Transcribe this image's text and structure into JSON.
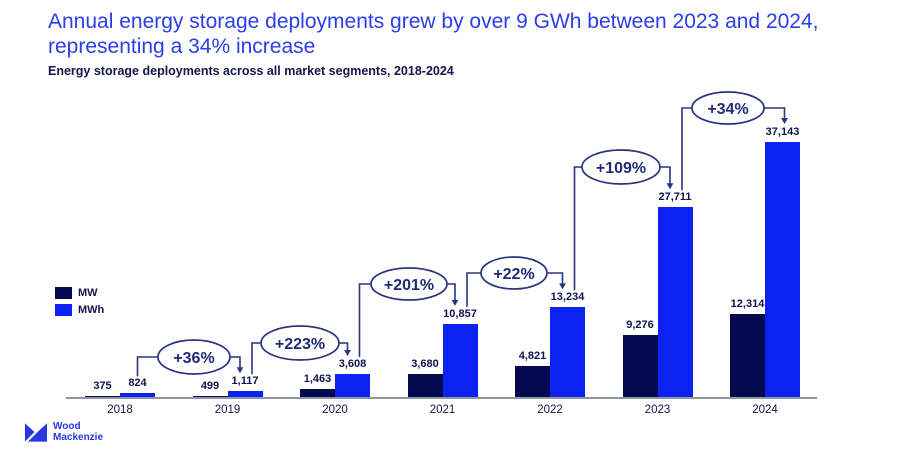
{
  "title": {
    "line1": "Annual energy storage deployments grew by over 9 GWh between 2023 and 2024,",
    "line2": "representing a 34% increase"
  },
  "subtitle": "Energy storage deployments across all market segments, 2018-2024",
  "logo": {
    "line1": "Wood",
    "line2": "Mackenzie"
  },
  "colors": {
    "title_blue": "#2a3eea",
    "dark_navy_text": "#15154d",
    "value_label": "#10124d",
    "mw_bar": "#050a4e",
    "mwh_bar": "#0b22f0",
    "annotation": "#2a3480",
    "annotation_text": "#1f2a78",
    "axis": "#8f95a3",
    "logo_blue": "#2639e0",
    "background": "#ffffff"
  },
  "chart_data": {
    "type": "bar",
    "title": "Energy storage deployments across all market segments, 2018-2024",
    "categories": [
      "2018",
      "2019",
      "2020",
      "2021",
      "2022",
      "2023",
      "2024"
    ],
    "series": [
      {
        "name": "MW",
        "color": "#050a4e",
        "values": [
          375,
          499,
          1463,
          3680,
          4821,
          9276,
          12314
        ]
      },
      {
        "name": "MWh",
        "color": "#0b22f0",
        "values": [
          824,
          1117,
          3608,
          10857,
          13234,
          27711,
          37143
        ]
      }
    ],
    "annotations": [
      {
        "label": "+36%",
        "from": "2018",
        "to": "2019"
      },
      {
        "label": "+223%",
        "from": "2019",
        "to": "2020"
      },
      {
        "label": "+201%",
        "from": "2020",
        "to": "2021"
      },
      {
        "label": "+22%",
        "from": "2021",
        "to": "2022"
      },
      {
        "label": "+109%",
        "from": "2022",
        "to": "2023"
      },
      {
        "label": "+34%",
        "from": "2023",
        "to": "2024"
      }
    ],
    "xlabel": "",
    "ylabel": "",
    "ylim": [
      0,
      38000
    ],
    "grid": false,
    "y_axis_visible": false,
    "legend_position": "middle-left",
    "value_labels": true
  }
}
